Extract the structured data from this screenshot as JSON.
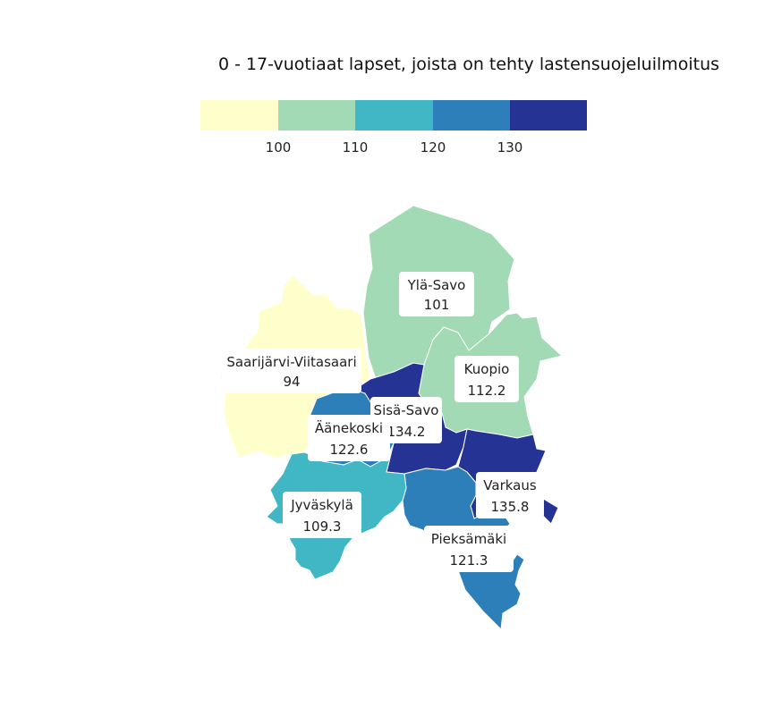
{
  "title": "0 - 17-vuotiaat lapset, joista on tehty lastensuojeluilmoitus",
  "legend": {
    "colors": [
      "#ffffcc",
      "#a1dab4",
      "#41b6c4",
      "#2c7fb8",
      "#253494"
    ],
    "ticks": [
      "100",
      "110",
      "120",
      "130"
    ]
  },
  "regions": [
    {
      "id": "saarijarvi-viitasaari",
      "name": "Saarijärvi-Viitasaari",
      "value": "94",
      "color": "#ffffcc"
    },
    {
      "id": "yla-savo",
      "name": "Ylä-Savo",
      "value": "101",
      "color": "#a1dab4"
    },
    {
      "id": "jyvaskyla",
      "name": "Jyväskylä",
      "value": "109.3",
      "color": "#a1dab4"
    },
    {
      "id": "kuopio",
      "name": "Kuopio",
      "value": "112.2",
      "color": "#41b6c4"
    },
    {
      "id": "pieksamaki",
      "name": "Pieksämäki",
      "value": "121.3",
      "color": "#2c7fb8"
    },
    {
      "id": "aanekoski",
      "name": "Äänekoski",
      "value": "122.6",
      "color": "#2c7fb8"
    },
    {
      "id": "sisa-savo",
      "name": "Sisä-Savo",
      "value": "134.2",
      "color": "#253494"
    },
    {
      "id": "varkaus",
      "name": "Varkaus",
      "value": "135.8",
      "color": "#253494"
    }
  ]
}
